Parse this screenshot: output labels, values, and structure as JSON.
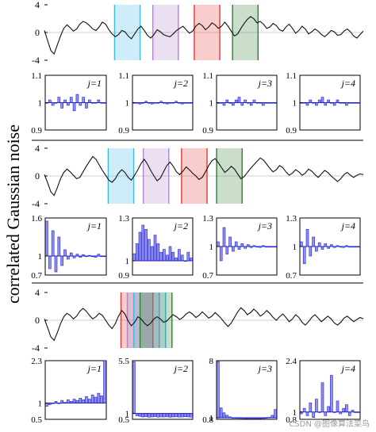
{
  "figure": {
    "ylabel": "correlated Gaussian noise",
    "watermark": "CSDN @图像算法菜鸟"
  },
  "chart_data": [
    {
      "type": "line",
      "panel": "top-signal",
      "ylim": [
        -4,
        4
      ],
      "yticks": [
        "4",
        "0",
        "-4"
      ],
      "shaded_windows": [
        {
          "x": [
            0.22,
            0.3
          ],
          "color": "#3fb8e6"
        },
        {
          "x": [
            0.34,
            0.42
          ],
          "color": "#b084c8"
        },
        {
          "x": [
            0.47,
            0.55
          ],
          "color": "#e53935"
        },
        {
          "x": [
            0.59,
            0.67
          ],
          "color": "#2e7d32"
        }
      ],
      "y": [
        0.3,
        -1.2,
        -2.6,
        -3.1,
        -1.8,
        -0.5,
        0.6,
        1.1,
        0.7,
        0.2,
        0.5,
        1.2,
        1.6,
        1.4,
        1.0,
        0.5,
        0.3,
        0.8,
        1.5,
        1.2,
        0.4,
        -0.2,
        -0.6,
        -0.3,
        0.3,
        0.1,
        -0.5,
        -0.9,
        -0.2,
        0.5,
        0.9,
        0.3,
        -0.4,
        -0.8,
        -0.3,
        0.4,
        0.1,
        -0.3,
        -0.5,
        -0.6,
        -0.2,
        0.3,
        0.6,
        0.9,
        0.4,
        -0.1,
        0.2,
        0.9,
        1.3,
        1.0,
        0.4,
        0.8,
        1.4,
        1.1,
        0.6,
        0.9,
        1.5,
        0.9,
        0.2,
        -0.5,
        -0.2,
        0.6,
        1.3,
        1.9,
        2.3,
        2.0,
        1.4,
        1.6,
        1.2,
        0.6,
        0.8,
        1.3,
        1.0,
        0.4,
        0.2,
        0.8,
        1.2,
        0.6,
        -0.1,
        0.3,
        0.9,
        0.5,
        -0.2,
        0.1,
        0.5,
        0.2,
        -0.3,
        -0.6,
        -0.2,
        0.3,
        0.1,
        -0.4,
        -0.3,
        0.2,
        0.5,
        0.1,
        -0.5,
        -0.8,
        -0.3,
        0.2
      ]
    },
    {
      "type": "bar",
      "panel": "row1",
      "subplots": [
        {
          "label": "j=1",
          "ylim": [
            0.9,
            1.1
          ],
          "yticks": [
            "1.1",
            "1",
            "0.9"
          ],
          "show_yticks": true,
          "values": [
            1.0,
            1.01,
            0.99,
            1.0,
            1.02,
            0.98,
            1.01,
            0.99,
            1.02,
            0.97,
            1.03,
            0.99,
            1.02,
            0.98,
            1.01,
            1.0,
            1.0,
            1.01,
            1.0,
            1.0
          ]
        },
        {
          "label": "j=2",
          "ylim": [
            0.9,
            1.1
          ],
          "yticks": [
            "1.1",
            "1",
            "0.9"
          ],
          "show_yticks": true,
          "values": [
            1.0,
            1.0,
            0.995,
            1.0,
            1.005,
            1.0,
            0.995,
            1.0,
            1.0,
            1.005,
            1.0,
            0.995,
            1.0,
            1.0,
            1.005,
            1.0,
            0.995,
            1.0,
            1.0,
            1.0
          ]
        },
        {
          "label": "j=3",
          "ylim": [
            0.9,
            1.1
          ],
          "yticks": [
            "1.1",
            "1",
            "0.9"
          ],
          "show_yticks": true,
          "values": [
            1.0,
            1.0,
            0.99,
            1.01,
            1.0,
            0.99,
            1.01,
            1.02,
            0.99,
            1.01,
            1.0,
            0.99,
            1.01,
            1.0,
            1.0,
            0.99,
            1.0,
            1.0,
            1.0,
            1.0
          ]
        },
        {
          "label": "j=4",
          "ylim": [
            0.9,
            1.1
          ],
          "yticks": [
            "1.1",
            "1",
            "0.9"
          ],
          "show_yticks": true,
          "values": [
            1.0,
            1.0,
            0.99,
            1.01,
            1.0,
            0.99,
            1.01,
            1.02,
            0.99,
            1.01,
            1.0,
            0.99,
            1.01,
            1.0,
            1.0,
            0.99,
            1.0,
            1.0,
            1.0,
            1.0
          ]
        }
      ]
    },
    {
      "type": "line",
      "panel": "middle-signal",
      "ylim": [
        -4,
        4
      ],
      "yticks": [
        "4",
        "0",
        "-4"
      ],
      "shaded_windows": [
        {
          "x": [
            0.2,
            0.28
          ],
          "color": "#3fb8e6"
        },
        {
          "x": [
            0.31,
            0.39
          ],
          "color": "#b084c8"
        },
        {
          "x": [
            0.43,
            0.51
          ],
          "color": "#e53935"
        },
        {
          "x": [
            0.54,
            0.62
          ],
          "color": "#2e7d32"
        }
      ],
      "y": [
        0.2,
        -1.0,
        -2.3,
        -2.8,
        -1.7,
        -0.4,
        0.5,
        1.0,
        0.6,
        0.1,
        -0.4,
        -0.2,
        0.6,
        1.4,
        2.1,
        2.8,
        2.4,
        1.6,
        0.8,
        0.1,
        -0.6,
        -0.9,
        -0.4,
        0.4,
        0.9,
        0.5,
        -0.2,
        -0.6,
        0.1,
        0.9,
        1.8,
        2.4,
        1.7,
        0.8,
        0.0,
        -0.7,
        -0.3,
        0.6,
        1.5,
        2.0,
        1.4,
        0.6,
        0.2,
        0.7,
        1.3,
        0.9,
        0.4,
        0.0,
        -0.5,
        -0.2,
        0.6,
        1.5,
        2.2,
        2.5,
        1.9,
        1.2,
        0.5,
        0.9,
        1.4,
        1.0,
        0.3,
        -0.4,
        -0.1,
        0.5,
        1.1,
        1.6,
        2.1,
        2.6,
        2.3,
        1.7,
        1.1,
        0.6,
        0.9,
        1.5,
        1.2,
        0.6,
        0.1,
        0.4,
        0.9,
        0.6,
        0.1,
        0.4,
        1.0,
        0.7,
        0.2,
        -0.2,
        0.3,
        0.8,
        0.5,
        0.0,
        -0.4,
        -0.8,
        -0.4,
        0.2,
        0.5,
        0.1,
        -0.2,
        0.1,
        0.3,
        0.2
      ]
    },
    {
      "type": "bar",
      "panel": "row2",
      "subplots": [
        {
          "label": "j=1",
          "ylim": [
            0.7,
            1.6
          ],
          "yticks": [
            "1.6",
            "1",
            "0.7"
          ],
          "show_yticks": true,
          "values": [
            1.55,
            0.8,
            1.4,
            0.75,
            1.3,
            0.85,
            1.1,
            0.95,
            1.05,
            0.97,
            1.03,
            0.98,
            1.02,
            0.99,
            1.01,
            1.0,
            0.98,
            1.03,
            1.0,
            1.0
          ]
        },
        {
          "label": "j=2",
          "ylim": [
            0.9,
            1.3
          ],
          "yticks": [
            "1.3",
            "1",
            "0.9"
          ],
          "show_yticks": true,
          "values": [
            1.05,
            1.12,
            1.2,
            1.25,
            1.22,
            1.15,
            1.1,
            1.18,
            1.12,
            1.06,
            1.08,
            1.04,
            1.1,
            1.06,
            1.02,
            1.08,
            1.04,
            1.0,
            1.06,
            1.02
          ]
        },
        {
          "label": "j=3",
          "ylim": [
            0.7,
            1.3
          ],
          "yticks": [
            "1.3",
            "1",
            "0.7"
          ],
          "show_yticks": true,
          "values": [
            1.05,
            0.85,
            1.2,
            0.92,
            1.1,
            0.95,
            1.05,
            0.97,
            1.03,
            0.98,
            1.02,
            0.99,
            1.01,
            1.0,
            0.99,
            1.01,
            1.0,
            1.0,
            1.0,
            1.0
          ]
        },
        {
          "label": "j=4",
          "ylim": [
            0.7,
            1.3
          ],
          "yticks": [
            "1.3",
            "1",
            "0.7"
          ],
          "show_yticks": true,
          "values": [
            1.05,
            0.82,
            1.18,
            0.9,
            1.1,
            0.95,
            1.04,
            0.97,
            1.03,
            0.98,
            1.02,
            0.99,
            1.01,
            1.0,
            0.99,
            1.01,
            1.0,
            1.0,
            1.0,
            1.0
          ]
        }
      ]
    },
    {
      "type": "line",
      "panel": "bottom-signal",
      "ylim": [
        -4,
        4
      ],
      "yticks": [
        "4",
        "0",
        "-4"
      ],
      "shaded_windows": [
        {
          "x": [
            0.24,
            0.34
          ],
          "color": "#e53935"
        },
        {
          "x": [
            0.26,
            0.36
          ],
          "color": "#b084c8"
        },
        {
          "x": [
            0.28,
            0.38
          ],
          "color": "#3fb8e6"
        },
        {
          "x": [
            0.3,
            0.4
          ],
          "color": "#2e7d32"
        }
      ],
      "y": [
        0.2,
        -1.1,
        -2.4,
        -2.9,
        -1.8,
        -0.5,
        0.5,
        1.0,
        0.7,
        0.2,
        0.6,
        1.3,
        1.7,
        1.3,
        0.7,
        0.2,
        0.5,
        1.0,
        0.7,
        0.0,
        -0.7,
        -1.2,
        -0.5,
        0.6,
        1.4,
        0.9,
        -0.1,
        -0.8,
        -0.3,
        0.5,
        0.2,
        -0.4,
        -0.8,
        -0.4,
        0.2,
        0.5,
        0.2,
        -0.3,
        -0.1,
        0.4,
        0.8,
        0.5,
        0.1,
        0.4,
        0.9,
        1.2,
        0.9,
        0.4,
        0.7,
        1.2,
        0.8,
        0.3,
        0.6,
        1.1,
        0.7,
        0.2,
        -0.4,
        -0.9,
        -0.4,
        0.4,
        1.2,
        1.8,
        1.4,
        0.8,
        1.1,
        1.6,
        1.2,
        0.6,
        0.9,
        1.4,
        1.0,
        0.4,
        0.0,
        0.5,
        0.9,
        0.4,
        -0.2,
        0.2,
        0.8,
        0.4,
        -0.3,
        -0.7,
        -0.2,
        0.4,
        0.8,
        0.3,
        -0.2,
        0.2,
        0.6,
        0.2,
        -0.4,
        -0.7,
        -0.3,
        0.3,
        0.6,
        0.2,
        -0.2,
        0.1,
        0.4,
        0.2
      ]
    },
    {
      "type": "bar",
      "panel": "row3",
      "subplots": [
        {
          "label": "j=1",
          "ylim": [
            0.5,
            2.3
          ],
          "yticks": [
            "2.3",
            "1",
            "0.5"
          ],
          "show_yticks": true,
          "values": [
            0.9,
            0.95,
            1.0,
            1.05,
            1.0,
            1.08,
            1.02,
            1.1,
            1.05,
            1.12,
            1.08,
            1.15,
            1.1,
            1.2,
            1.12,
            1.25,
            1.18,
            1.3,
            1.22,
            2.3
          ]
        },
        {
          "label": "j=2",
          "ylim": [
            0.5,
            5.5
          ],
          "yticks": [
            "5.5",
            "1",
            "0.5"
          ],
          "show_yticks": true,
          "values": [
            5.4,
            0.8,
            0.75,
            0.7,
            0.72,
            0.68,
            0.7,
            0.73,
            0.69,
            0.71,
            0.7,
            0.72,
            0.68,
            0.7,
            0.71,
            0.69,
            0.7,
            0.72,
            0.7,
            0.69
          ]
        },
        {
          "label": "j=3",
          "ylim": [
            0.8,
            8
          ],
          "yticks": [
            "8",
            "1",
            "0.8"
          ],
          "show_yticks": true,
          "values": [
            7.9,
            2.2,
            1.6,
            1.3,
            1.1,
            1.0,
            0.95,
            0.92,
            0.9,
            0.88,
            0.87,
            0.86,
            0.86,
            0.87,
            0.88,
            0.9,
            0.95,
            1.05,
            1.3,
            2.0
          ]
        },
        {
          "label": "j=4",
          "ylim": [
            0.8,
            2.4
          ],
          "yticks": [
            "2.4",
            "1",
            "0.8"
          ],
          "show_yticks": true,
          "values": [
            0.95,
            1.1,
            0.9,
            1.25,
            0.85,
            1.35,
            1.0,
            1.8,
            0.9,
            1.15,
            2.0,
            1.0,
            1.3,
            0.95,
            1.1,
            1.2,
            0.9,
            1.05,
            1.0,
            1.0
          ]
        }
      ]
    }
  ]
}
